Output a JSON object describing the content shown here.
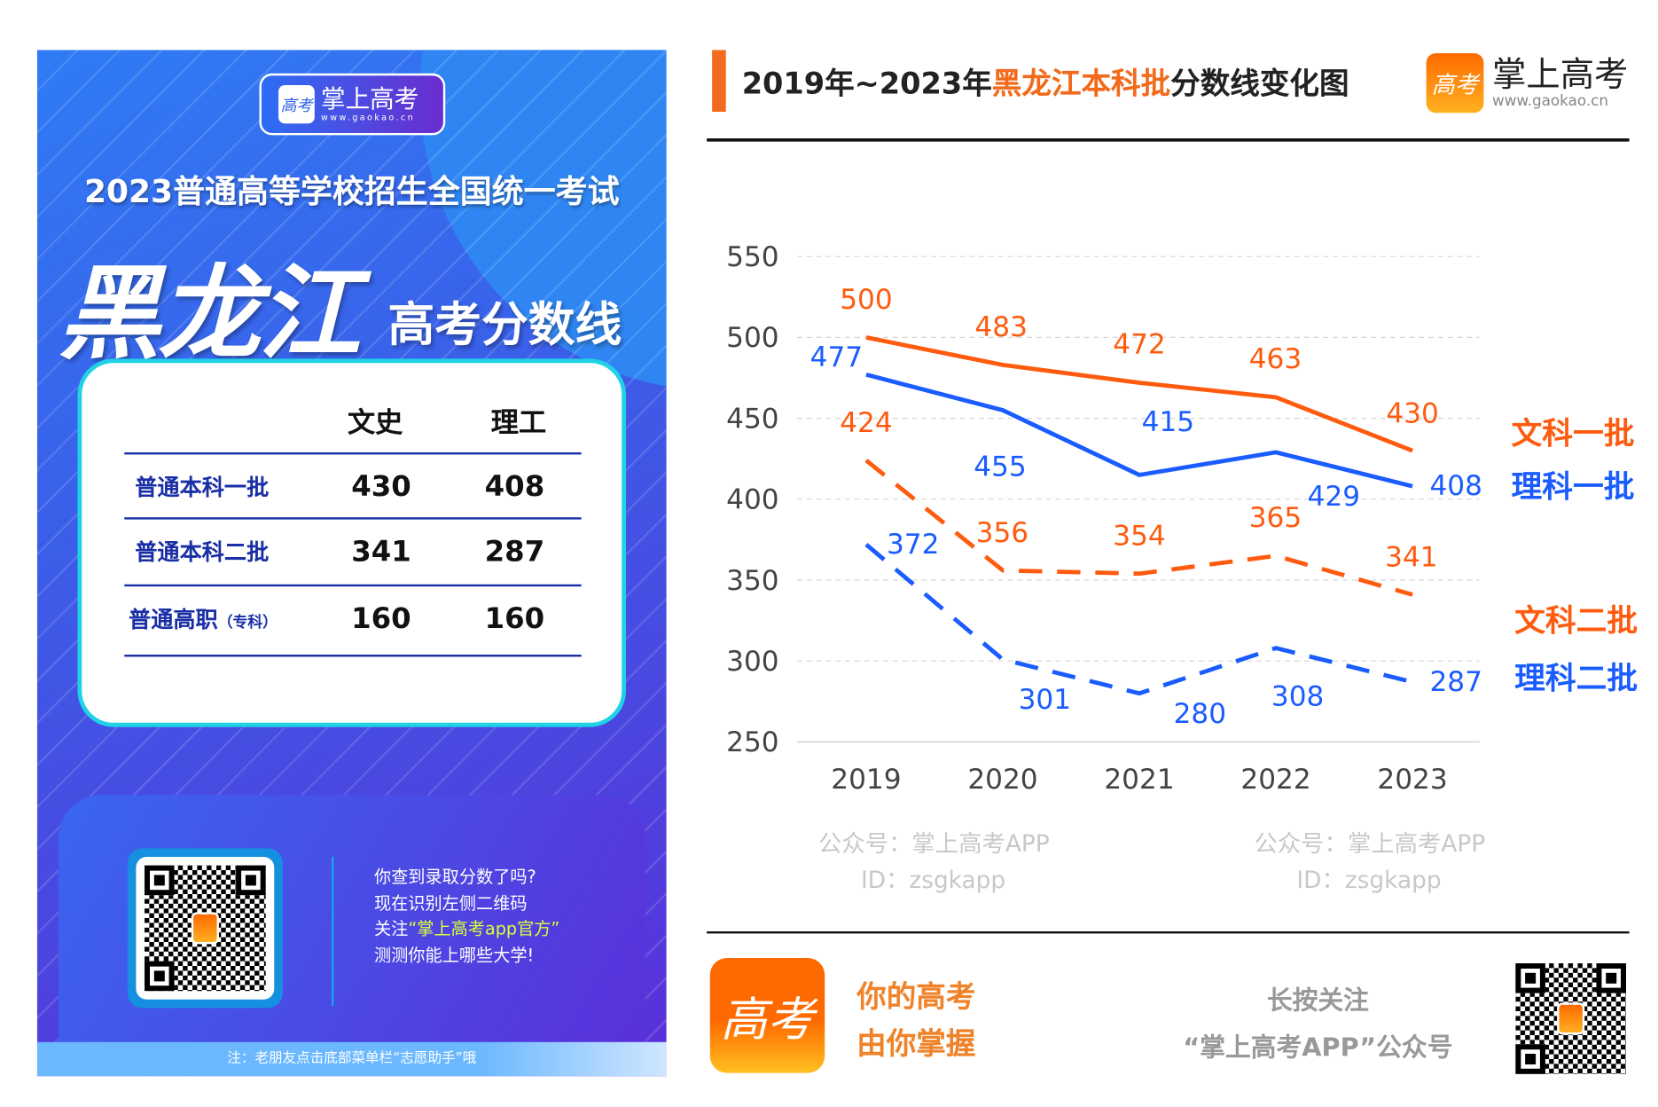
{
  "poster": {
    "logo_name": "掌上高考",
    "logo_url": "www.gaokao.cn",
    "logo_icon": "高考",
    "exam_title": "2023普通高等学校招生全国统一考试",
    "province": "黑龙江",
    "subtitle": "高考分数线",
    "table": {
      "headers": [
        "文史",
        "理工"
      ],
      "rows": [
        {
          "label": "普通本科一批",
          "note": "",
          "wenshi": "430",
          "ligong": "408"
        },
        {
          "label": "普通本科二批",
          "note": "",
          "wenshi": "341",
          "ligong": "287"
        },
        {
          "label": "普通高职",
          "note": "（专科）",
          "wenshi": "160",
          "ligong": "160"
        }
      ]
    },
    "qr_text": {
      "line1": "你查到录取分数了吗?",
      "line2": "现在识别左侧二维码",
      "line3_pre": "关注",
      "line3_hl": "“掌上高考app官方”",
      "line4": "测测你能上哪些大学!"
    },
    "note": "注：老朋友点击底部菜单栏“志愿助手”哦"
  },
  "header": {
    "title_pre": "2019年~2023年",
    "title_hl": "黑龙江本科批",
    "title_post": "分数线变化图",
    "brand_name": "掌上高考",
    "brand_url": "www.gaokao.cn",
    "brand_icon": "高考"
  },
  "watermark": {
    "line1": "公众号：掌上高考APP",
    "line2": "ID：zsgkapp"
  },
  "chart_data": {
    "type": "line",
    "categories": [
      "2019",
      "2020",
      "2021",
      "2022",
      "2023"
    ],
    "ylim": [
      250,
      550
    ],
    "yticks": [
      250,
      300,
      350,
      400,
      450,
      500,
      550
    ],
    "grid": true,
    "legend": "right",
    "series": [
      {
        "name": "文科一批",
        "values": [
          500,
          483,
          472,
          463,
          430
        ],
        "color": "#ff5b0f",
        "dash": false
      },
      {
        "name": "理科一批",
        "values": [
          477,
          455,
          415,
          429,
          408
        ],
        "color": "#1a5cff",
        "dash": false
      },
      {
        "name": "文科二批",
        "values": [
          424,
          356,
          354,
          365,
          341
        ],
        "color": "#ff5b0f",
        "dash": true
      },
      {
        "name": "理科二批",
        "values": [
          372,
          301,
          280,
          308,
          287
        ],
        "color": "#1a5cff",
        "dash": true
      }
    ]
  },
  "footer": {
    "icon": "高考",
    "slogan1": "你的高考",
    "slogan2": "由你掌握",
    "follow1": "长按关注",
    "follow2": "“掌上高考APP”公众号"
  }
}
